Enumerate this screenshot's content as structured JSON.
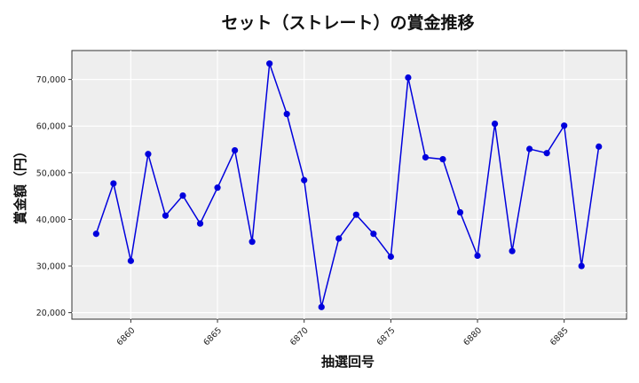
{
  "chart_data": {
    "type": "line",
    "title": "セット（ストレート）の賞金推移",
    "xlabel": "抽選回号",
    "ylabel": "賞金額（円）",
    "x": [
      6858,
      6859,
      6860,
      6861,
      6862,
      6863,
      6864,
      6865,
      6866,
      6867,
      6868,
      6869,
      6870,
      6871,
      6872,
      6873,
      6874,
      6875,
      6876,
      6877,
      6878,
      6879,
      6880,
      6881,
      6882,
      6883,
      6884,
      6885,
      6886,
      6887
    ],
    "series": [
      {
        "name": "賞金額",
        "color": "#0000dd",
        "values": [
          36900,
          47700,
          31100,
          54000,
          40800,
          45100,
          39100,
          46800,
          54800,
          35200,
          73400,
          62600,
          48400,
          21200,
          35900,
          41000,
          36900,
          32000,
          70400,
          53300,
          52900,
          41500,
          32200,
          60500,
          33200,
          55100,
          54200,
          60100,
          30000,
          55600
        ]
      }
    ],
    "x_ticks": [
      6860,
      6865,
      6870,
      6875,
      6880,
      6885
    ],
    "y_ticks": [
      20000,
      30000,
      40000,
      50000,
      60000,
      70000
    ],
    "y_tick_labels": [
      "20,000",
      "30,000",
      "40,000",
      "50,000",
      "60,000",
      "70,000"
    ],
    "xlim": [
      6856.6,
      6888.6
    ],
    "ylim": [
      18600,
      76200
    ],
    "grid": true,
    "legend": "none",
    "background": "#eeeeee",
    "marker": "circle"
  }
}
